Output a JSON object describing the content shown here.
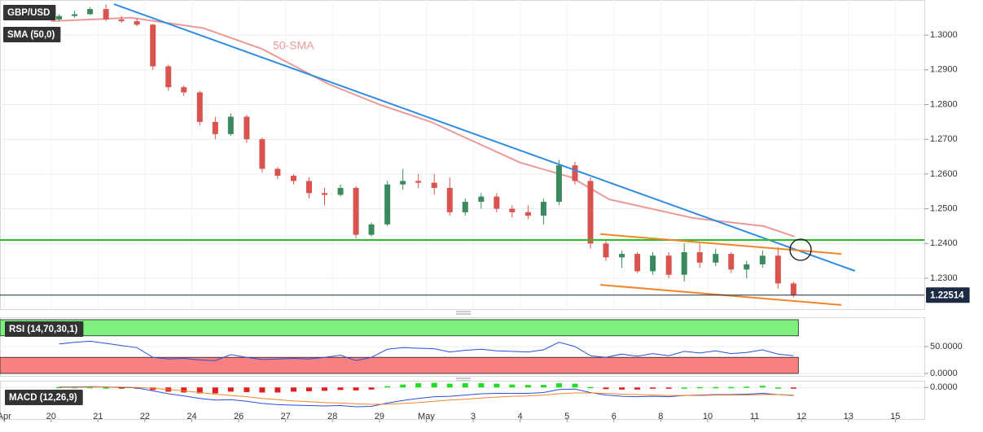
{
  "chart_data": [
    {
      "type": "candlestick",
      "title": "GBP/USD",
      "x": [
        1.17,
        1.5,
        1.83,
        2.17,
        2.5,
        2.83,
        3.17,
        3.5,
        3.83,
        4.17,
        4.5,
        4.83,
        5.17,
        5.5,
        5.83,
        6.17,
        6.5,
        6.83,
        7.17,
        7.5,
        7.83,
        8.17,
        8.5,
        8.83,
        9.17,
        9.5,
        9.83,
        10.17,
        10.5,
        10.83,
        11.17,
        11.5,
        11.83,
        12.17,
        12.5,
        12.83,
        13.17,
        13.5,
        13.83,
        14.17,
        14.5,
        14.83,
        15.17,
        15.5,
        15.83,
        16.17,
        16.5,
        16.83
      ],
      "open": [
        1.3045,
        1.3055,
        1.306,
        1.3075,
        1.3045,
        1.304,
        1.303,
        1.291,
        1.285,
        1.2835,
        1.275,
        1.2715,
        1.2765,
        1.27,
        1.2615,
        1.2595,
        1.258,
        1.2545,
        1.254,
        1.256,
        1.2425,
        1.2455,
        1.257,
        1.258,
        1.2575,
        1.256,
        1.249,
        1.252,
        1.2535,
        1.25,
        1.249,
        1.248,
        1.252,
        1.2625,
        1.258,
        1.24,
        1.236,
        1.237,
        1.232,
        1.2365,
        1.231,
        1.2375,
        1.2345,
        1.237,
        1.2325,
        1.234,
        1.2365,
        1.2285
      ],
      "high": [
        1.306,
        1.307,
        1.308,
        1.3088,
        1.3055,
        1.3048,
        1.3032,
        1.2915,
        1.2855,
        1.284,
        1.2765,
        1.2775,
        1.277,
        1.2705,
        1.262,
        1.26,
        1.259,
        1.256,
        1.257,
        1.2565,
        1.246,
        1.258,
        1.2615,
        1.26,
        1.26,
        1.259,
        1.253,
        1.2545,
        1.2545,
        1.251,
        1.251,
        1.253,
        1.264,
        1.2635,
        1.259,
        1.241,
        1.238,
        1.2375,
        1.2375,
        1.2375,
        1.24,
        1.24,
        1.2385,
        1.2375,
        1.235,
        1.238,
        1.239,
        1.229
      ],
      "low": [
        1.304,
        1.305,
        1.3058,
        1.304,
        1.3035,
        1.3025,
        1.29,
        1.284,
        1.2825,
        1.274,
        1.27,
        1.271,
        1.269,
        1.2605,
        1.2585,
        1.257,
        1.253,
        1.251,
        1.2535,
        1.2415,
        1.242,
        1.245,
        1.2555,
        1.256,
        1.254,
        1.248,
        1.248,
        1.25,
        1.249,
        1.2475,
        1.247,
        1.2455,
        1.251,
        1.257,
        1.2385,
        1.235,
        1.233,
        1.2315,
        1.231,
        1.23,
        1.229,
        1.233,
        1.2335,
        1.2315,
        1.23,
        1.233,
        1.227,
        1.2245
      ],
      "close": [
        1.3055,
        1.306,
        1.3075,
        1.3045,
        1.304,
        1.303,
        1.291,
        1.285,
        1.2835,
        1.275,
        1.2715,
        1.2765,
        1.27,
        1.2615,
        1.2595,
        1.258,
        1.2545,
        1.254,
        1.256,
        1.2425,
        1.2455,
        1.257,
        1.258,
        1.2575,
        1.256,
        1.249,
        1.252,
        1.2535,
        1.25,
        1.249,
        1.248,
        1.252,
        1.2625,
        1.258,
        1.24,
        1.236,
        1.237,
        1.232,
        1.2365,
        1.231,
        1.2375,
        1.2345,
        1.237,
        1.2325,
        1.234,
        1.2365,
        1.2285,
        1.22514
      ],
      "colors": {
        "up": "#3b8a5f",
        "down": "#d9534f"
      },
      "xlim": [
        -0.09,
        19.62
      ],
      "xticks": [
        {
          "value": 0,
          "label": "Apr"
        },
        {
          "value": 1,
          "label": "20"
        },
        {
          "value": 2,
          "label": "21"
        },
        {
          "value": 3,
          "label": "22"
        },
        {
          "value": 4,
          "label": "24"
        },
        {
          "value": 5,
          "label": "26"
        },
        {
          "value": 6,
          "label": "27"
        },
        {
          "value": 7,
          "label": "28"
        },
        {
          "value": 8,
          "label": "29"
        },
        {
          "value": 9,
          "label": "May"
        },
        {
          "value": 10,
          "label": "3"
        },
        {
          "value": 11,
          "label": "4"
        },
        {
          "value": 12,
          "label": "5"
        },
        {
          "value": 13,
          "label": "6"
        },
        {
          "value": 14,
          "label": "8"
        },
        {
          "value": 15,
          "label": "10"
        },
        {
          "value": 16,
          "label": "11"
        },
        {
          "value": 17,
          "label": "12"
        },
        {
          "value": 18,
          "label": "13"
        },
        {
          "value": 19,
          "label": "15"
        }
      ],
      "ylim": [
        1.2211,
        1.3101
      ],
      "yticks": [
        {
          "value": 1.23,
          "label": "1.2300"
        },
        {
          "value": 1.24,
          "label": "1.2400"
        },
        {
          "value": 1.25,
          "label": "1.2500"
        },
        {
          "value": 1.26,
          "label": "1.2600"
        },
        {
          "value": 1.27,
          "label": "1.2700"
        },
        {
          "value": 1.28,
          "label": "1.2800"
        },
        {
          "value": 1.29,
          "label": "1.2900"
        },
        {
          "value": 1.3,
          "label": "1.3000"
        }
      ],
      "grid": true,
      "overlays": [
        {
          "name": "SMA (50,0)",
          "label": "50-SMA",
          "color": "#eb9a9a",
          "x": [
            1,
            2.7,
            4.25,
            5.5,
            6.9,
            8,
            9.1,
            11,
            12.1,
            12.9,
            14.7,
            16.2,
            16.85
          ],
          "values": [
            1.304,
            1.305,
            1.302,
            1.296,
            1.286,
            1.28,
            1.275,
            1.2633,
            1.259,
            1.2527,
            1.2473,
            1.245,
            1.242
          ]
        }
      ],
      "trendlines": [
        {
          "color": "#2f8de4",
          "x": [
            2.34,
            18.14
          ],
          "values": [
            1.3089,
            1.2321
          ]
        },
        {
          "color": "#22c322",
          "x": [
            -0.09,
            19.62
          ],
          "values": [
            1.241,
            1.241
          ]
        },
        {
          "color": "#f0862a",
          "x": [
            12.71,
            17.85
          ],
          "values": [
            1.2427,
            1.237
          ]
        },
        {
          "color": "#f0862a",
          "x": [
            12.71,
            17.85
          ],
          "values": [
            1.2281,
            1.2223
          ]
        }
      ],
      "last_price": 1.22514
    },
    {
      "type": "line",
      "title": "RSI (14,70,30,1)",
      "x": [
        1.17,
        1.5,
        1.83,
        2.17,
        2.5,
        2.83,
        3.17,
        3.5,
        3.83,
        4.17,
        4.5,
        4.83,
        5.17,
        5.5,
        5.83,
        6.17,
        6.5,
        6.83,
        7.17,
        7.5,
        7.83,
        8.17,
        8.5,
        8.83,
        9.17,
        9.5,
        9.83,
        10.17,
        10.5,
        10.83,
        11.17,
        11.5,
        11.83,
        12.17,
        12.5,
        12.83,
        13.17,
        13.5,
        13.83,
        14.17,
        14.5,
        14.83,
        15.17,
        15.5,
        15.83,
        16.17,
        16.5,
        16.83
      ],
      "values": [
        55,
        58,
        60,
        56,
        52,
        48,
        30,
        27,
        28,
        25,
        24,
        35,
        30,
        26,
        27,
        28,
        27,
        30,
        34,
        24,
        30,
        45,
        48,
        47,
        46,
        40,
        43,
        45,
        42,
        41,
        40,
        44,
        58,
        50,
        33,
        30,
        36,
        32,
        37,
        33,
        41,
        38,
        42,
        37,
        39,
        44,
        36,
        33
      ],
      "color": "#2a4fd6",
      "bands": [
        {
          "range": [
            70,
            100
          ],
          "color": "#7df07d"
        },
        {
          "range": [
            0,
            30
          ],
          "color": "#f78080"
        }
      ],
      "xlim": [
        -0.09,
        19.62
      ],
      "ylim": [
        -4.5,
        104.5
      ],
      "yticks": [
        {
          "value": 50,
          "label": "50.0000"
        },
        {
          "value": 0,
          "label": "0.0000"
        }
      ]
    },
    {
      "type": "macd",
      "title": "MACD (12,26,9)",
      "x": [
        1.17,
        1.5,
        1.83,
        2.17,
        2.5,
        2.83,
        3.17,
        3.5,
        3.83,
        4.17,
        4.5,
        4.83,
        5.17,
        5.5,
        5.83,
        6.17,
        6.5,
        6.83,
        7.17,
        7.5,
        7.83,
        8.17,
        8.5,
        8.83,
        9.17,
        9.5,
        9.83,
        10.17,
        10.5,
        10.83,
        11.17,
        11.5,
        11.83,
        12.17,
        12.5,
        12.83,
        13.17,
        13.5,
        13.83,
        14.17,
        14.5,
        14.83,
        15.17,
        15.5,
        15.83,
        16.17,
        16.5,
        16.83
      ],
      "macd": {
        "color": "#2a4fd6",
        "values": [
          0.0001,
          0.0001,
          0.0002,
          0.0001,
          0,
          -0.0001,
          -0.0008,
          -0.0015,
          -0.002,
          -0.0026,
          -0.003,
          -0.0029,
          -0.0033,
          -0.0038,
          -0.0041,
          -0.0042,
          -0.0043,
          -0.0044,
          -0.0043,
          -0.0046,
          -0.0045,
          -0.0037,
          -0.0031,
          -0.0026,
          -0.0022,
          -0.0021,
          -0.0018,
          -0.0015,
          -0.0014,
          -0.0014,
          -0.0014,
          -0.0012,
          -0.0005,
          -0.0004,
          -0.0012,
          -0.0018,
          -0.0021,
          -0.0022,
          -0.0021,
          -0.0022,
          -0.0019,
          -0.0018,
          -0.0017,
          -0.0017,
          -0.0016,
          -0.0014,
          -0.0017,
          -0.0019
        ]
      },
      "signal": {
        "color": "#f0862a",
        "values": [
          0,
          0,
          0.0001,
          0.0001,
          0.0001,
          0,
          -0.0002,
          -0.0005,
          -0.0008,
          -0.0012,
          -0.0016,
          -0.0019,
          -0.0022,
          -0.0026,
          -0.0029,
          -0.0032,
          -0.0034,
          -0.0036,
          -0.0037,
          -0.0039,
          -0.004,
          -0.004,
          -0.0038,
          -0.0036,
          -0.0033,
          -0.003,
          -0.0028,
          -0.0025,
          -0.0023,
          -0.0021,
          -0.002,
          -0.0018,
          -0.0015,
          -0.0013,
          -0.0013,
          -0.0014,
          -0.0016,
          -0.0017,
          -0.0018,
          -0.0019,
          -0.0019,
          -0.0019,
          -0.0018,
          -0.0018,
          -0.0018,
          -0.0017,
          -0.0017,
          -0.0018
        ]
      },
      "histogram": {
        "colors": {
          "up": "#22dd22",
          "down": "#e02020"
        },
        "values": [
          0.0001,
          0.0001,
          0.0001,
          0,
          -0.0001,
          -0.0001,
          -0.0006,
          -0.001,
          -0.0012,
          -0.0014,
          -0.0014,
          -0.001,
          -0.0011,
          -0.0012,
          -0.0012,
          -0.001,
          -0.0009,
          -0.0008,
          -0.0006,
          -0.0007,
          -0.0005,
          0.0003,
          0.0007,
          0.001,
          0.0011,
          0.0009,
          0.001,
          0.001,
          0.0009,
          0.0007,
          0.0006,
          0.0006,
          0.001,
          0.0009,
          0.0001,
          -0.0004,
          -0.0005,
          -0.0005,
          -0.0003,
          -0.0003,
          0,
          0.0001,
          0.0001,
          0.0001,
          0.0002,
          0.0004,
          0,
          -0.0001
        ]
      },
      "xlim": [
        -0.09,
        19.62
      ],
      "ylim": [
        -0.0075,
        0.0016
      ],
      "yticks": [
        {
          "value": 0,
          "label": "0.0000"
        }
      ]
    }
  ]
}
